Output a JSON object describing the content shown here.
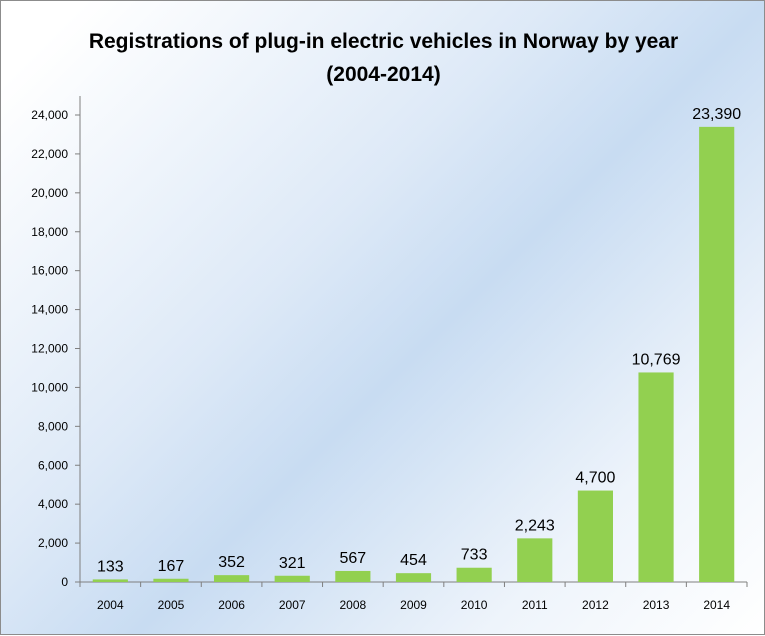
{
  "chart_data": {
    "type": "bar",
    "title": "Registrations of plug-in electric vehicles in Norway by year",
    "subtitle": "(2004-2014)",
    "xlabel": "",
    "ylabel": "",
    "categories": [
      "2004",
      "2005",
      "2006",
      "2007",
      "2008",
      "2009",
      "2010",
      "2011",
      "2012",
      "2013",
      "2014"
    ],
    "values": [
      133,
      167,
      352,
      321,
      567,
      454,
      733,
      2243,
      4700,
      10769,
      23390
    ],
    "value_labels": [
      "133",
      "167",
      "352",
      "321",
      "567",
      "454",
      "733",
      "2,243",
      "4,700",
      "10,769",
      "23,390"
    ],
    "ylim": [
      0,
      24000
    ],
    "yticks": [
      "0",
      "2,000",
      "4,000",
      "6,000",
      "8,000",
      "10,000",
      "12,000",
      "14,000",
      "16,000",
      "18,000",
      "20,000",
      "22,000",
      "24,000"
    ],
    "grid": false,
    "legend": "none",
    "bar_color": "#92d050"
  }
}
